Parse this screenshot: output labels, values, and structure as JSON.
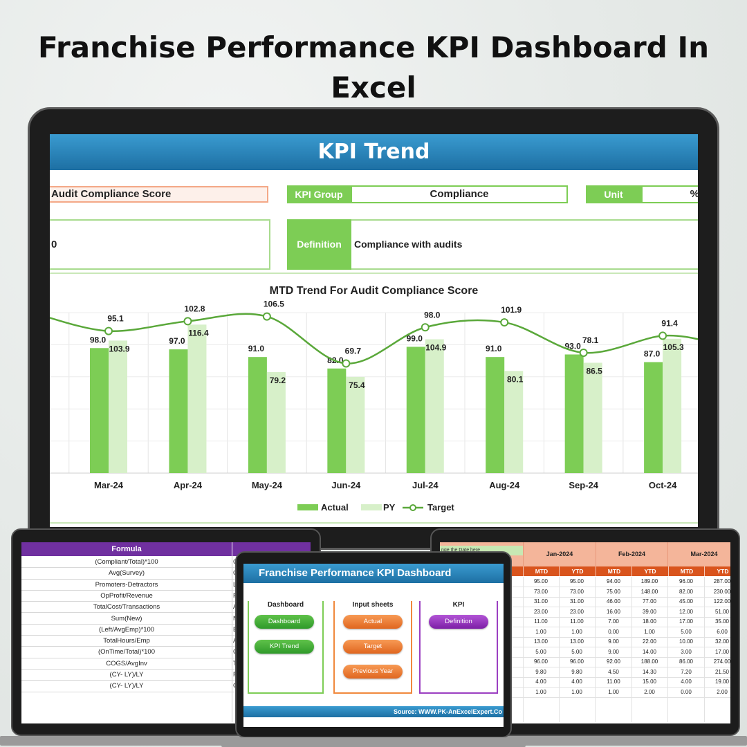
{
  "page": {
    "title_line1": "Franchise Performance KPI Dashboard In",
    "title_line2": "Excel"
  },
  "kpi_trend": {
    "banner": "KPI Trend",
    "kpi_name": "Audit Compliance Score",
    "kpi_group_label": "KPI Group",
    "kpi_group_value": "Compliance",
    "unit_label": "Unit",
    "unit_value": "%",
    "formula_value": "0",
    "definition_label": "Definition",
    "definition_value": "Compliance with audits",
    "chart_title": "MTD Trend For Audit Compliance Score"
  },
  "chart_data": {
    "type": "bar",
    "title": "MTD Trend For Audit Compliance Score",
    "categories": [
      "Mar-24",
      "Apr-24",
      "May-24",
      "Jun-24",
      "Jul-24",
      "Aug-24",
      "Sep-24",
      "Oct-24"
    ],
    "series": [
      {
        "name": "Actual",
        "type": "bar",
        "color": "#7dcd55",
        "values": [
          98.0,
          97.0,
          91.0,
          82.0,
          99.0,
          91.0,
          93.0,
          87.0
        ]
      },
      {
        "name": "PY",
        "type": "bar",
        "color": "#d7f0c9",
        "values": [
          103.9,
          116.4,
          79.2,
          75.4,
          104.9,
          80.1,
          86.5,
          105.3
        ]
      },
      {
        "name": "Target",
        "type": "line",
        "color": "#5aa83a",
        "values": [
          95.1,
          102.8,
          106.5,
          69.7,
          98.0,
          101.9,
          78.1,
          91.4
        ]
      }
    ],
    "value_labels": {
      "actual": [
        "98.0",
        "97.0",
        "91.0",
        "82.0",
        "99.0",
        "91.0",
        "93.0",
        "87.0"
      ],
      "py": [
        "103.9",
        "116.4",
        "79.2",
        "75.4",
        "104.9",
        "80.1",
        "86.5",
        "105.3"
      ],
      "target": [
        "95.1",
        "102.8",
        "106.5",
        "69.7",
        "98.0",
        "101.9",
        "78.1",
        "91.4"
      ]
    },
    "legend": [
      "Actual",
      "PY",
      "Target"
    ],
    "legend_position": "bottom",
    "grid": true
  },
  "formula_sheet": {
    "header": "Formula",
    "rows": [
      {
        "formula": "(Compliant/Total)*100",
        "next": "C"
      },
      {
        "formula": "Avg(Survey)",
        "next": "C"
      },
      {
        "formula": "Promoters-Detractors",
        "next": "L"
      },
      {
        "formula": "OpProfit/Revenue",
        "next": "F"
      },
      {
        "formula": "TotalCost/Transactions",
        "next": "A"
      },
      {
        "formula": "Sum(New)",
        "next": "N"
      },
      {
        "formula": "(Left/AvgEmp)*100",
        "next": "E"
      },
      {
        "formula": "TotalHours/Emp",
        "next": "A"
      },
      {
        "formula": "(OnTime/Total)*100",
        "next": "C"
      },
      {
        "formula": "COGS/AvgInv",
        "next": "T"
      },
      {
        "formula": "(CY- LY)/LY",
        "next": "F"
      },
      {
        "formula": "(CY- LY)/LY",
        "next": "C"
      }
    ]
  },
  "data_sheet": {
    "date_tag": "nge the Date here",
    "months": [
      "Jan-2024",
      "Feb-2024",
      "Mar-2024"
    ],
    "sub_headers": [
      "MTD",
      "YTD",
      "MTD",
      "YTD",
      "MTD",
      "YTD"
    ],
    "rows": [
      [
        "95.00",
        "95.00",
        "94.00",
        "189.00",
        "96.00",
        "287.00"
      ],
      [
        "73.00",
        "73.00",
        "75.00",
        "148.00",
        "82.00",
        "230.00"
      ],
      [
        "31.00",
        "31.00",
        "46.00",
        "77.00",
        "45.00",
        "122.00"
      ],
      [
        "23.00",
        "23.00",
        "16.00",
        "39.00",
        "12.00",
        "51.00"
      ],
      [
        "11.00",
        "11.00",
        "7.00",
        "18.00",
        "17.00",
        "35.00"
      ],
      [
        "1.00",
        "1.00",
        "0.00",
        "1.00",
        "5.00",
        "6.00"
      ],
      [
        "13.00",
        "13.00",
        "9.00",
        "22.00",
        "10.00",
        "32.00"
      ],
      [
        "5.00",
        "5.00",
        "9.00",
        "14.00",
        "3.00",
        "17.00"
      ],
      [
        "96.00",
        "96.00",
        "92.00",
        "188.00",
        "86.00",
        "274.00"
      ],
      [
        "9.80",
        "9.80",
        "4.50",
        "14.30",
        "7.20",
        "21.50"
      ],
      [
        "4.00",
        "4.00",
        "11.00",
        "15.00",
        "4.00",
        "19.00"
      ],
      [
        "1.00",
        "1.00",
        "1.00",
        "2.00",
        "0.00",
        "2.00"
      ]
    ]
  },
  "dashboard_menu": {
    "banner": "Franchise Performance KPI Dashboard",
    "groups": [
      {
        "title": "Dashboard",
        "buttons": [
          "Dashboard",
          "KPI Trend"
        ]
      },
      {
        "title": "Input sheets",
        "buttons": [
          "Actual",
          "Target",
          "Previous Year"
        ]
      },
      {
        "title": "KPI",
        "buttons": [
          "Definition"
        ]
      }
    ],
    "footer": "Source: WWW.PK-AnExcelExpert.Co"
  }
}
